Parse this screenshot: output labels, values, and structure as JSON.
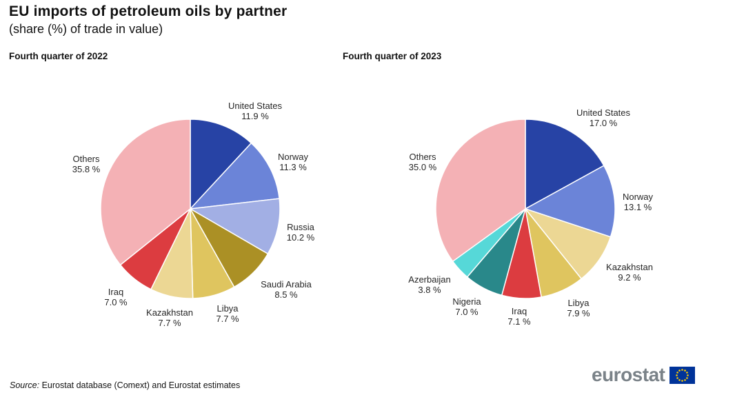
{
  "header": {
    "title": "EU imports of petroleum oils by partner",
    "subtitle": "(share (%) of trade in value)"
  },
  "footer": {
    "source_label": "Source:",
    "source_text": "Eurostat database (Comext) and Eurostat estimates",
    "logo_text": "eurostat"
  },
  "colors": {
    "eu_flag_blue": "#003399",
    "eu_star_yellow": "#ffcc00",
    "logo_gray": "#7a8288",
    "slice_separator": "#ffffff"
  },
  "chart_data": [
    {
      "type": "pie",
      "title": "Fourth quarter of 2022",
      "unit": "% share of trade in value",
      "legend": "none",
      "label_position": "outside",
      "start_angle": "12 o'clock, clockwise",
      "slices": [
        {
          "label": "United States",
          "value": 11.9,
          "display": "11.9 %",
          "color": "#2743a5"
        },
        {
          "label": "Norway",
          "value": 11.3,
          "display": "11.3 %",
          "color": "#6b84d8"
        },
        {
          "label": "Russia",
          "value": 10.2,
          "display": "10.2 %",
          "color": "#a2afe4"
        },
        {
          "label": "Saudi Arabia",
          "value": 8.5,
          "display": "8.5 %",
          "color": "#ab9025"
        },
        {
          "label": "Libya",
          "value": 7.7,
          "display": "7.7 %",
          "color": "#dfc55f"
        },
        {
          "label": "Kazakhstan",
          "value": 7.7,
          "display": "7.7 %",
          "color": "#ecd794"
        },
        {
          "label": "Iraq",
          "value": 7.0,
          "display": "7.0 %",
          "color": "#dc3c40"
        },
        {
          "label": "Others",
          "value": 35.8,
          "display": "35.8 %",
          "color": "#f4b1b5"
        }
      ]
    },
    {
      "type": "pie",
      "title": "Fourth quarter of 2023",
      "unit": "% share of trade in value",
      "legend": "none",
      "label_position": "outside",
      "start_angle": "12 o'clock, clockwise",
      "slices": [
        {
          "label": "United States",
          "value": 17.0,
          "display": "17.0 %",
          "color": "#2743a5"
        },
        {
          "label": "Norway",
          "value": 13.1,
          "display": "13.1 %",
          "color": "#6b84d8"
        },
        {
          "label": "Kazakhstan",
          "value": 9.2,
          "display": "9.2 %",
          "color": "#ecd794"
        },
        {
          "label": "Libya",
          "value": 7.9,
          "display": "7.9 %",
          "color": "#dfc55f"
        },
        {
          "label": "Iraq",
          "value": 7.1,
          "display": "7.1 %",
          "color": "#dc3c40"
        },
        {
          "label": "Nigeria",
          "value": 7.0,
          "display": "7.0 %",
          "color": "#29888a"
        },
        {
          "label": "Azerbaijan",
          "value": 3.8,
          "display": "3.8 %",
          "color": "#56d8d8"
        },
        {
          "label": "Others",
          "value": 35.0,
          "display": "35.0 %",
          "color": "#f4b1b5"
        }
      ]
    }
  ]
}
